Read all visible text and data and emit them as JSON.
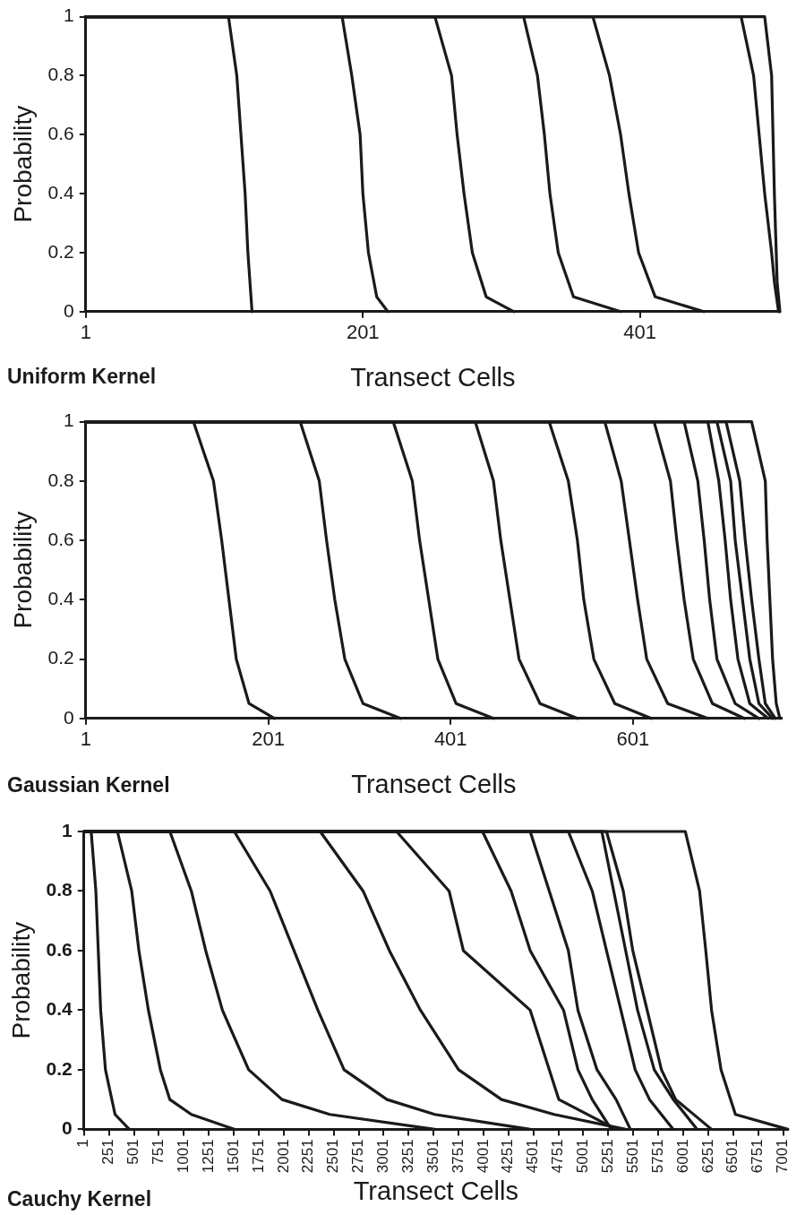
{
  "chart_data": [
    {
      "type": "line",
      "title": "Uniform Kernel",
      "xlabel": "Transect Cells",
      "ylabel": "Probability",
      "xlim": [
        1,
        502
      ],
      "ylim": [
        0,
        1
      ],
      "xticks": [
        1,
        201,
        401
      ],
      "yticks": [
        0,
        0.2,
        0.4,
        0.6,
        0.8,
        1
      ],
      "grid": false,
      "legend": false,
      "marker": "none",
      "line_style": "solid",
      "series": [
        {
          "color": "#1a1a1a",
          "x": [
            1,
            104,
            110,
            113,
            116,
            118,
            121
          ],
          "values": [
            1,
            1,
            0.8,
            0.6,
            0.4,
            0.2,
            0
          ]
        },
        {
          "color": "#1a1a1a",
          "x": [
            1,
            186,
            193,
            199,
            201,
            205,
            211,
            219
          ],
          "values": [
            1,
            1,
            0.8,
            0.6,
            0.4,
            0.2,
            0.05,
            0
          ]
        },
        {
          "color": "#1a1a1a",
          "x": [
            1,
            253,
            265,
            269,
            274,
            280,
            290,
            310
          ],
          "values": [
            1,
            1,
            0.8,
            0.6,
            0.4,
            0.2,
            0.05,
            0
          ]
        },
        {
          "color": "#1a1a1a",
          "x": [
            1,
            317,
            327,
            332,
            336,
            342,
            353,
            387
          ],
          "values": [
            1,
            1,
            0.8,
            0.6,
            0.4,
            0.2,
            0.05,
            0
          ]
        },
        {
          "color": "#1a1a1a",
          "x": [
            1,
            367,
            379,
            387,
            393,
            400,
            412,
            447
          ],
          "values": [
            1,
            1,
            0.8,
            0.6,
            0.4,
            0.2,
            0.05,
            0
          ]
        },
        {
          "color": "#1a1a1a",
          "x": [
            1,
            474,
            483,
            487,
            491,
            496,
            498,
            501
          ],
          "values": [
            1,
            1,
            0.8,
            0.6,
            0.4,
            0.2,
            0.1,
            0
          ]
        },
        {
          "color": "#1a1a1a",
          "x": [
            1,
            491,
            496,
            498,
            500,
            502
          ],
          "values": [
            1,
            1,
            0.8,
            0.4,
            0.1,
            0
          ]
        }
      ]
    },
    {
      "type": "line",
      "title": "Gaussian Kernel",
      "xlabel": "Transect Cells",
      "ylabel": "Probability",
      "xlim": [
        1,
        764
      ],
      "ylim": [
        0,
        1
      ],
      "xticks": [
        1,
        201,
        401,
        601
      ],
      "yticks": [
        0,
        0.2,
        0.4,
        0.6,
        0.8,
        1
      ],
      "grid": false,
      "legend": false,
      "marker": "none",
      "line_style": "solid",
      "series": [
        {
          "color": "#1a1a1a",
          "x": [
            1,
            119,
            141,
            150,
            158,
            166,
            180,
            208
          ],
          "values": [
            1,
            1,
            0.8,
            0.6,
            0.4,
            0.2,
            0.05,
            0
          ]
        },
        {
          "color": "#1a1a1a",
          "x": [
            1,
            236,
            257,
            265,
            274,
            285,
            305,
            346
          ],
          "values": [
            1,
            1,
            0.8,
            0.6,
            0.4,
            0.2,
            0.05,
            0
          ]
        },
        {
          "color": "#1a1a1a",
          "x": [
            1,
            338,
            359,
            367,
            377,
            387,
            407,
            448
          ],
          "values": [
            1,
            1,
            0.8,
            0.6,
            0.4,
            0.2,
            0.05,
            0
          ]
        },
        {
          "color": "#1a1a1a",
          "x": [
            1,
            428,
            448,
            456,
            466,
            476,
            499,
            540
          ],
          "values": [
            1,
            1,
            0.8,
            0.6,
            0.4,
            0.2,
            0.05,
            0
          ]
        },
        {
          "color": "#1a1a1a",
          "x": [
            1,
            509,
            530,
            540,
            547,
            558,
            581,
            621
          ],
          "values": [
            1,
            1,
            0.8,
            0.6,
            0.4,
            0.2,
            0.05,
            0
          ]
        },
        {
          "color": "#1a1a1a",
          "x": [
            1,
            570,
            588,
            597,
            606,
            616,
            639,
            683
          ],
          "values": [
            1,
            1,
            0.8,
            0.6,
            0.4,
            0.2,
            0.05,
            0
          ]
        },
        {
          "color": "#1a1a1a",
          "x": [
            1,
            624,
            642,
            649,
            657,
            667,
            688,
            723
          ],
          "values": [
            1,
            1,
            0.8,
            0.6,
            0.4,
            0.2,
            0.05,
            0
          ]
        },
        {
          "color": "#1a1a1a",
          "x": [
            1,
            657,
            672,
            679,
            685,
            693,
            713,
            739
          ],
          "values": [
            1,
            1,
            0.8,
            0.6,
            0.4,
            0.2,
            0.05,
            0
          ]
        },
        {
          "color": "#1a1a1a",
          "x": [
            1,
            683,
            695,
            702,
            708,
            716,
            729,
            749
          ],
          "values": [
            1,
            1,
            0.8,
            0.6,
            0.4,
            0.2,
            0.05,
            0
          ]
        },
        {
          "color": "#1a1a1a",
          "x": [
            1,
            693,
            708,
            713,
            721,
            729,
            739,
            754
          ],
          "values": [
            1,
            1,
            0.8,
            0.6,
            0.4,
            0.2,
            0.05,
            0
          ]
        },
        {
          "color": "#1a1a1a",
          "x": [
            1,
            703,
            718,
            724,
            731,
            739,
            746,
            757
          ],
          "values": [
            1,
            1,
            0.8,
            0.6,
            0.4,
            0.2,
            0.05,
            0
          ]
        },
        {
          "color": "#1a1a1a",
          "x": [
            1,
            731,
            746,
            748,
            751,
            754,
            758,
            762
          ],
          "values": [
            1,
            1,
            0.8,
            0.6,
            0.4,
            0.2,
            0.05,
            0
          ]
        }
      ]
    },
    {
      "type": "line",
      "title": "Cauchy Kernel",
      "xlabel": "Transect Cells",
      "ylabel": "Probability",
      "xlim": [
        1,
        7049
      ],
      "ylim": [
        0,
        1
      ],
      "xticks": [
        1,
        251,
        501,
        751,
        1001,
        1251,
        1501,
        1751,
        2001,
        2251,
        2501,
        2751,
        3001,
        3251,
        3501,
        3751,
        4001,
        4251,
        4501,
        4751,
        5001,
        5251,
        5501,
        5751,
        6001,
        6251,
        6501,
        6751,
        7001
      ],
      "yticks": [
        0,
        0.2,
        0.4,
        0.6,
        0.8,
        1
      ],
      "grid": false,
      "legend": false,
      "marker": "none",
      "line_style": "solid",
      "series": [
        {
          "color": "#1a1a1a",
          "x": [
            1,
            73,
            120,
            144,
            168,
            216,
            312,
            455
          ],
          "values": [
            1,
            1,
            0.8,
            0.6,
            0.4,
            0.2,
            0.05,
            0
          ]
        },
        {
          "color": "#1a1a1a",
          "x": [
            1,
            336,
            479,
            551,
            646,
            766,
            861,
            1076,
            1506
          ],
          "values": [
            1,
            1,
            0.8,
            0.6,
            0.4,
            0.2,
            0.1,
            0.05,
            0
          ]
        },
        {
          "color": "#1a1a1a",
          "x": [
            1,
            861,
            1076,
            1220,
            1387,
            1650,
            1984,
            2462,
            3513
          ],
          "values": [
            1,
            1,
            0.8,
            0.6,
            0.4,
            0.2,
            0.1,
            0.05,
            0
          ]
        },
        {
          "color": "#1a1a1a",
          "x": [
            1,
            1506,
            1865,
            2104,
            2343,
            2605,
            3035,
            3513,
            4469
          ],
          "values": [
            1,
            1,
            0.8,
            0.6,
            0.4,
            0.2,
            0.1,
            0.05,
            0
          ]
        },
        {
          "color": "#1a1a1a",
          "x": [
            1,
            2366,
            2796,
            3059,
            3370,
            3752,
            4182,
            4708,
            5425
          ],
          "values": [
            1,
            1,
            0.8,
            0.6,
            0.4,
            0.2,
            0.1,
            0.05,
            0
          ]
        },
        {
          "color": "#1a1a1a",
          "x": [
            1,
            3131,
            3657,
            3800,
            4469,
            4756,
            5329
          ],
          "values": [
            1,
            1,
            0.8,
            0.6,
            0.4,
            0.1,
            0
          ]
        },
        {
          "color": "#1a1a1a",
          "x": [
            1,
            3991,
            4278,
            4469,
            4803,
            4947,
            5090,
            5281
          ],
          "values": [
            1,
            1,
            0.8,
            0.6,
            0.4,
            0.2,
            0.1,
            0
          ]
        },
        {
          "color": "#1a1a1a",
          "x": [
            1,
            4469,
            4660,
            4851,
            4947,
            5138,
            5329,
            5472
          ],
          "values": [
            1,
            1,
            0.8,
            0.6,
            0.4,
            0.2,
            0.1,
            0
          ]
        },
        {
          "color": "#1a1a1a",
          "x": [
            1,
            4851,
            5090,
            5233,
            5377,
            5520,
            5664,
            5902
          ],
          "values": [
            1,
            1,
            0.8,
            0.6,
            0.4,
            0.2,
            0.1,
            0
          ]
        },
        {
          "color": "#1a1a1a",
          "x": [
            1,
            5186,
            5305,
            5425,
            5544,
            5711,
            5902,
            6141
          ],
          "values": [
            1,
            1,
            0.8,
            0.6,
            0.4,
            0.2,
            0.1,
            0
          ]
        },
        {
          "color": "#1a1a1a",
          "x": [
            1,
            5233,
            5401,
            5496,
            5640,
            5783,
            5926,
            6285
          ],
          "values": [
            1,
            1,
            0.8,
            0.6,
            0.4,
            0.2,
            0.1,
            0
          ]
        },
        {
          "color": "#1a1a1a",
          "x": [
            1,
            6022,
            6165,
            6227,
            6285,
            6380,
            6476,
            6524,
            7049
          ],
          "values": [
            1,
            1,
            0.8,
            0.6,
            0.4,
            0.2,
            0.1,
            0.05,
            0
          ]
        }
      ]
    }
  ]
}
